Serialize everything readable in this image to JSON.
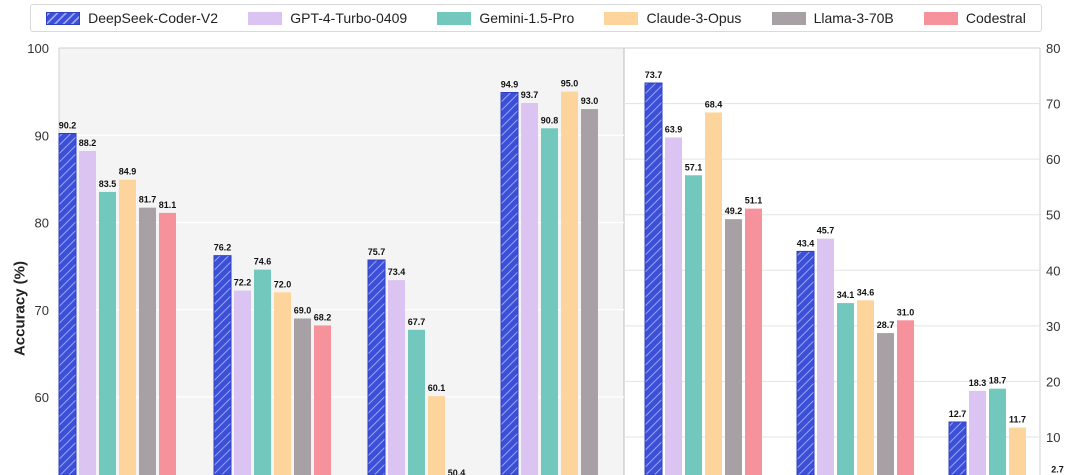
{
  "colors": {
    "DeepSeek-Coder-V2": "#3b4fd8",
    "GPT-4-Turbo-0409": "#dcc4f2",
    "Gemini-1.5-Pro": "#73c8bd",
    "Claude-3-Opus": "#fdd49c",
    "Llama-3-70B": "#a7a1a6",
    "Codestral": "#f5929c"
  },
  "chart_data": [
    {
      "type": "bar",
      "ylabel": "Accuracy (%)",
      "ylim": [
        50,
        100
      ],
      "yticks": [
        60,
        70,
        80,
        90,
        100
      ],
      "grid": true,
      "legend": "top",
      "categories": [
        "",
        "",
        "",
        ""
      ],
      "series": [
        {
          "name": "DeepSeek-Coder-V2",
          "values": [
            90.2,
            76.2,
            75.7,
            94.9
          ]
        },
        {
          "name": "GPT-4-Turbo-0409",
          "values": [
            88.2,
            72.2,
            73.4,
            93.7
          ]
        },
        {
          "name": "Gemini-1.5-Pro",
          "values": [
            83.5,
            74.6,
            67.7,
            90.8
          ]
        },
        {
          "name": "Claude-3-Opus",
          "values": [
            84.9,
            72.0,
            60.1,
            95.0
          ]
        },
        {
          "name": "Llama-3-70B",
          "values": [
            81.7,
            69.0,
            50.4,
            93.0
          ]
        },
        {
          "name": "Codestral",
          "values": [
            81.1,
            68.2,
            null,
            null
          ]
        }
      ],
      "data_labels": [
        [
          "90.2",
          "76.2",
          "75.7",
          "94.9"
        ],
        [
          "88.2",
          "72.2",
          "73.4",
          "93.7"
        ],
        [
          "83.5",
          "74.6",
          "67.7",
          "90.8"
        ],
        [
          "84.9",
          "72.0",
          "60.1",
          "95.0"
        ],
        [
          "81.7",
          "69.0",
          "50.4",
          "93.0"
        ],
        [
          "81.1",
          "68.2",
          "",
          ""
        ]
      ]
    },
    {
      "type": "bar",
      "ylim": [
        5,
        80
      ],
      "yticks": [
        10,
        20,
        30,
        40,
        50,
        60,
        70,
        80
      ],
      "grid": true,
      "categories": [
        "",
        "",
        ""
      ],
      "series": [
        {
          "name": "DeepSeek-Coder-V2",
          "values": [
            73.7,
            43.4,
            12.7
          ]
        },
        {
          "name": "GPT-4-Turbo-0409",
          "values": [
            63.9,
            45.7,
            18.3
          ]
        },
        {
          "name": "Gemini-1.5-Pro",
          "values": [
            57.1,
            34.1,
            18.7
          ]
        },
        {
          "name": "Claude-3-Opus",
          "values": [
            68.4,
            34.6,
            11.7
          ]
        },
        {
          "name": "Llama-3-70B",
          "values": [
            49.2,
            28.7,
            null
          ]
        },
        {
          "name": "Codestral",
          "values": [
            51.1,
            31.0,
            2.7
          ]
        }
      ],
      "data_labels": [
        [
          "73.7",
          "43.4",
          "12.7"
        ],
        [
          "63.9",
          "45.7",
          "18.3"
        ],
        [
          "57.1",
          "34.1",
          "18.7"
        ],
        [
          "68.4",
          "34.6",
          "11.7"
        ],
        [
          "49.2",
          "28.7",
          ""
        ],
        [
          "51.1",
          "31.0",
          "2.7"
        ]
      ]
    }
  ]
}
